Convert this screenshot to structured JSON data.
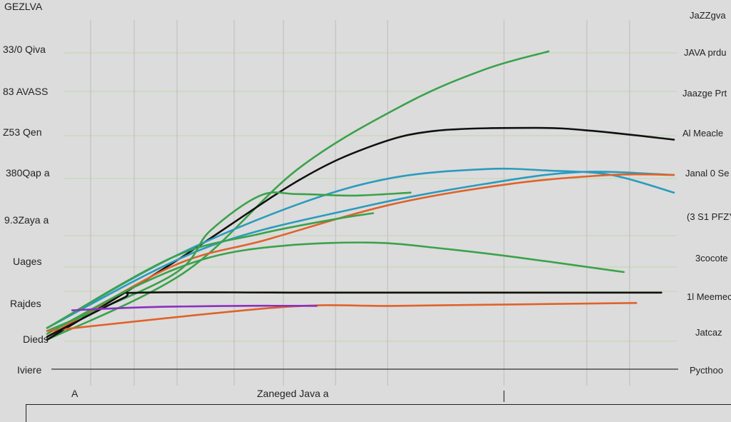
{
  "chart_data": {
    "type": "line",
    "title": "GEZLVA",
    "xlabel": "Zaneged Java a",
    "x_left_label": "A",
    "y_labels_left": [
      "33/0 Qiva",
      "83 AVASS",
      "Z53 Qen",
      "380Qap a",
      "9.3Zaya a",
      "Uages",
      "Rajdes",
      "Dieds",
      "Iviere"
    ],
    "y_labels_right": [
      "JaZZgva",
      "JAVA prdu",
      "Jaazge Prt",
      "Al Meacle",
      "Janal 0 Se",
      "(3 S1 PFZY",
      "3cocote",
      "1l Meemec",
      "Jatcaz",
      "Pycthoo"
    ],
    "xlim": [
      0,
      100
    ],
    "ylim": [
      0,
      100
    ],
    "grid": true,
    "series": [
      {
        "color": "#3aa24a",
        "x": [
          0,
          22,
          40,
          57,
          70,
          80
        ],
        "y": [
          2,
          25,
          60,
          82,
          94,
          100
        ]
      },
      {
        "color": "#111111",
        "x": [
          0,
          20,
          40,
          52,
          62,
          78,
          87,
          100
        ],
        "y": [
          2,
          28,
          56,
          68,
          73,
          74,
          73,
          70
        ]
      },
      {
        "color": "#2b9bbd",
        "x": [
          0,
          20,
          40,
          55,
          70,
          80,
          90,
          100
        ],
        "y": [
          6,
          30,
          48,
          57,
          60,
          59.5,
          58,
          52
        ]
      },
      {
        "color": "#2b9bbd",
        "x": [
          0,
          25,
          50,
          70,
          85,
          100
        ],
        "y": [
          6,
          33,
          47,
          55,
          59,
          58
        ]
      },
      {
        "color": "#e0622a",
        "x": [
          0,
          20,
          35,
          55,
          74,
          90,
          100
        ],
        "y": [
          3,
          27,
          36,
          48,
          55,
          58,
          58
        ]
      },
      {
        "color": "#3aa24a",
        "x": [
          0,
          20,
          26,
          34,
          40,
          49,
          58
        ],
        "y": [
          5,
          24,
          39,
          51,
          51.5,
          51,
          52
        ]
      },
      {
        "color": "#3aa24a",
        "x": [
          0,
          20,
          34,
          46,
          52
        ],
        "y": [
          6,
          30,
          38,
          43,
          45
        ]
      },
      {
        "color": "#3aa24a",
        "x": [
          0,
          14,
          26,
          38,
          52,
          63,
          75,
          92
        ],
        "y": [
          4,
          20,
          30,
          34,
          35,
          33,
          30,
          25
        ]
      },
      {
        "color": "#e0622a",
        "x": [
          0,
          37,
          55,
          75,
          94
        ],
        "y": [
          5,
          13,
          13.5,
          14,
          14.5
        ]
      },
      {
        "color": "#111111",
        "x": [
          0,
          12,
          15,
          40,
          70,
          98
        ],
        "y": [
          3,
          16,
          18,
          18,
          18,
          18
        ]
      },
      {
        "color": "#8c2fbf",
        "x": [
          4,
          15,
          30,
          43
        ],
        "y": [
          12,
          13,
          13.5,
          13.5
        ]
      }
    ]
  }
}
